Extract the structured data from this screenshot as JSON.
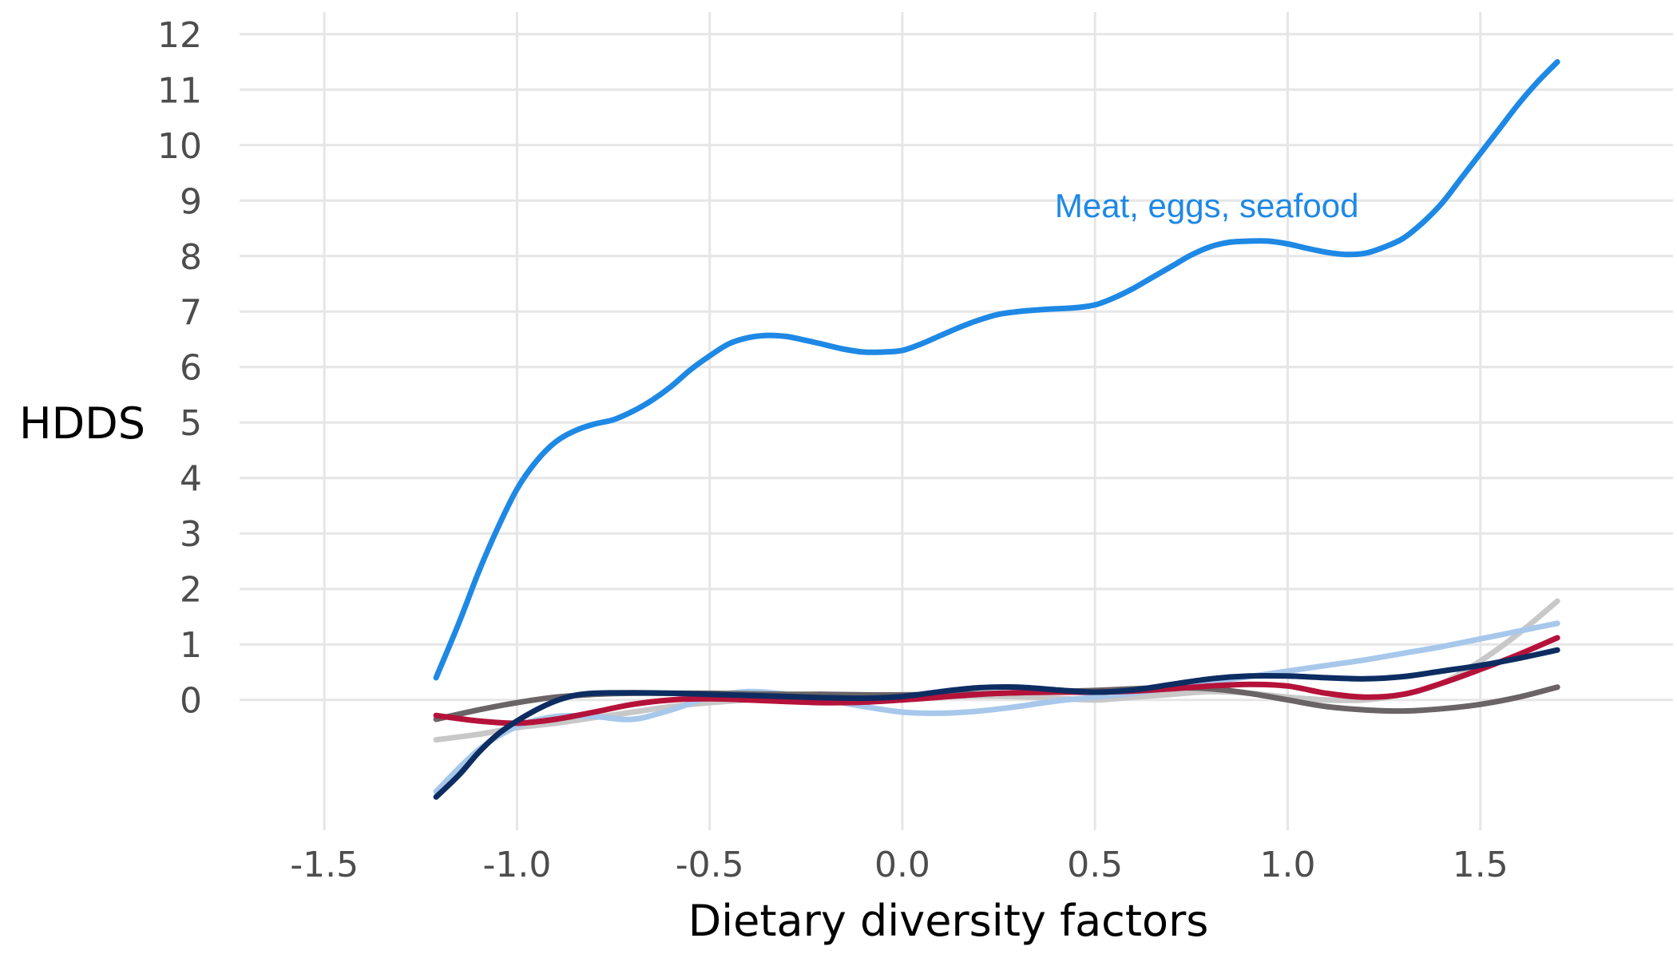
{
  "chart_data": {
    "type": "line",
    "title": "",
    "xlabel": "Dietary diversity factors",
    "ylabel": "HDDS",
    "xlim": [
      -1.72,
      2.0
    ],
    "ylim": [
      -2.35,
      12.4
    ],
    "x_ticks": [
      "-1.5",
      "-1.0",
      "-0.5",
      "0.0",
      "0.5",
      "1.0",
      "1.5"
    ],
    "x_tick_values": [
      -1.5,
      -1.0,
      -0.5,
      0.0,
      0.5,
      1.0,
      1.5
    ],
    "y_ticks": [
      "0",
      "1",
      "2",
      "3",
      "4",
      "5",
      "6",
      "7",
      "8",
      "9",
      "10",
      "11",
      "12"
    ],
    "y_tick_values": [
      0,
      1,
      2,
      3,
      4,
      5,
      6,
      7,
      8,
      9,
      10,
      11,
      12
    ],
    "grid": true,
    "legend": "none",
    "annotations": [
      {
        "text": "Meat, eggs, seafood",
        "x": 0.79,
        "y": 8.9,
        "color": "#1e88e5"
      }
    ],
    "series": [
      {
        "name": "Meat, eggs, seafood",
        "color": "#1e88e5",
        "x": [
          -1.21,
          -1.15,
          -1.1,
          -1.05,
          -1.0,
          -0.95,
          -0.9,
          -0.85,
          -0.8,
          -0.75,
          -0.7,
          -0.65,
          -0.6,
          -0.55,
          -0.5,
          -0.45,
          -0.4,
          -0.35,
          -0.3,
          -0.25,
          -0.2,
          -0.15,
          -0.1,
          -0.05,
          0.0,
          0.05,
          0.1,
          0.15,
          0.2,
          0.25,
          0.3,
          0.35,
          0.4,
          0.45,
          0.5,
          0.55,
          0.6,
          0.65,
          0.7,
          0.75,
          0.8,
          0.85,
          0.9,
          0.95,
          1.0,
          1.05,
          1.1,
          1.15,
          1.2,
          1.25,
          1.3,
          1.35,
          1.4,
          1.45,
          1.5,
          1.55,
          1.6,
          1.65,
          1.7
        ],
        "y": [
          0.4,
          1.4,
          2.3,
          3.1,
          3.8,
          4.3,
          4.65,
          4.85,
          4.97,
          5.05,
          5.2,
          5.4,
          5.65,
          5.95,
          6.2,
          6.42,
          6.53,
          6.57,
          6.55,
          6.48,
          6.4,
          6.32,
          6.27,
          6.27,
          6.3,
          6.42,
          6.57,
          6.72,
          6.85,
          6.95,
          7.0,
          7.03,
          7.05,
          7.07,
          7.12,
          7.25,
          7.42,
          7.62,
          7.82,
          8.02,
          8.17,
          8.25,
          8.27,
          8.27,
          8.22,
          8.14,
          8.07,
          8.03,
          8.05,
          8.16,
          8.32,
          8.6,
          8.95,
          9.4,
          9.85,
          10.3,
          10.75,
          11.15,
          11.5
        ]
      },
      {
        "name": "",
        "color": "#c8c8c8",
        "x": [
          -1.21,
          -1.1,
          -1.0,
          -0.9,
          -0.8,
          -0.7,
          -0.6,
          -0.5,
          -0.4,
          -0.3,
          -0.2,
          -0.1,
          0.0,
          0.1,
          0.2,
          0.3,
          0.4,
          0.5,
          0.6,
          0.7,
          0.8,
          0.9,
          1.0,
          1.1,
          1.2,
          1.3,
          1.4,
          1.5,
          1.6,
          1.7
        ],
        "y": [
          -0.72,
          -0.62,
          -0.5,
          -0.42,
          -0.32,
          -0.22,
          -0.12,
          -0.05,
          0.0,
          0.02,
          0.03,
          0.04,
          0.05,
          0.06,
          0.07,
          0.06,
          0.03,
          0.0,
          0.05,
          0.1,
          0.15,
          0.12,
          0.05,
          0.0,
          0.0,
          0.1,
          0.3,
          0.7,
          1.2,
          1.78
        ]
      },
      {
        "name": "",
        "color": "#a7c8eb",
        "x": [
          -1.21,
          -1.1,
          -1.0,
          -0.9,
          -0.8,
          -0.7,
          -0.6,
          -0.5,
          -0.4,
          -0.3,
          -0.2,
          -0.1,
          0.0,
          0.1,
          0.2,
          0.3,
          0.4,
          0.5,
          0.6,
          0.7,
          0.8,
          0.9,
          1.0,
          1.1,
          1.2,
          1.3,
          1.4,
          1.5,
          1.6,
          1.7
        ],
        "y": [
          -1.65,
          -0.9,
          -0.48,
          -0.3,
          -0.3,
          -0.35,
          -0.18,
          0.05,
          0.15,
          0.1,
          0.0,
          -0.12,
          -0.22,
          -0.24,
          -0.2,
          -0.12,
          -0.02,
          0.05,
          0.12,
          0.22,
          0.32,
          0.42,
          0.52,
          0.62,
          0.72,
          0.84,
          0.96,
          1.1,
          1.24,
          1.38
        ]
      },
      {
        "name": "",
        "color": "#6b6466",
        "x": [
          -1.21,
          -1.1,
          -1.0,
          -0.9,
          -0.8,
          -0.7,
          -0.6,
          -0.5,
          -0.4,
          -0.3,
          -0.2,
          -0.1,
          0.0,
          0.1,
          0.2,
          0.3,
          0.4,
          0.5,
          0.6,
          0.7,
          0.8,
          0.9,
          1.0,
          1.1,
          1.2,
          1.3,
          1.4,
          1.5,
          1.6,
          1.7
        ],
        "y": [
          -0.35,
          -0.18,
          -0.05,
          0.05,
          0.1,
          0.12,
          0.12,
          0.12,
          0.11,
          0.1,
          0.1,
          0.09,
          0.09,
          0.1,
          0.11,
          0.13,
          0.15,
          0.17,
          0.2,
          0.22,
          0.2,
          0.12,
          0.0,
          -0.12,
          -0.18,
          -0.2,
          -0.16,
          -0.08,
          0.05,
          0.23
        ]
      },
      {
        "name": "",
        "color": "#b5123a",
        "x": [
          -1.21,
          -1.1,
          -1.0,
          -0.9,
          -0.8,
          -0.7,
          -0.6,
          -0.5,
          -0.4,
          -0.3,
          -0.2,
          -0.1,
          0.0,
          0.1,
          0.2,
          0.3,
          0.4,
          0.5,
          0.6,
          0.7,
          0.8,
          0.9,
          1.0,
          1.1,
          1.2,
          1.3,
          1.4,
          1.5,
          1.6,
          1.7
        ],
        "y": [
          -0.28,
          -0.38,
          -0.42,
          -0.35,
          -0.22,
          -0.08,
          0.0,
          0.02,
          0.0,
          -0.03,
          -0.05,
          -0.04,
          0.0,
          0.05,
          0.1,
          0.13,
          0.14,
          0.14,
          0.16,
          0.2,
          0.25,
          0.28,
          0.25,
          0.12,
          0.05,
          0.1,
          0.3,
          0.55,
          0.82,
          1.12
        ]
      },
      {
        "name": "",
        "color": "#0d2d62",
        "x": [
          -1.21,
          -1.15,
          -1.1,
          -1.05,
          -1.0,
          -0.95,
          -0.9,
          -0.85,
          -0.8,
          -0.7,
          -0.6,
          -0.5,
          -0.4,
          -0.3,
          -0.2,
          -0.1,
          0.0,
          0.1,
          0.2,
          0.3,
          0.4,
          0.5,
          0.6,
          0.7,
          0.8,
          0.9,
          1.0,
          1.1,
          1.2,
          1.3,
          1.4,
          1.5,
          1.6,
          1.7
        ],
        "y": [
          -1.75,
          -1.35,
          -0.95,
          -0.62,
          -0.38,
          -0.18,
          -0.02,
          0.08,
          0.12,
          0.13,
          0.12,
          0.1,
          0.08,
          0.06,
          0.04,
          0.03,
          0.06,
          0.15,
          0.22,
          0.23,
          0.18,
          0.14,
          0.18,
          0.28,
          0.38,
          0.43,
          0.43,
          0.4,
          0.38,
          0.42,
          0.52,
          0.62,
          0.75,
          0.9
        ]
      }
    ]
  }
}
